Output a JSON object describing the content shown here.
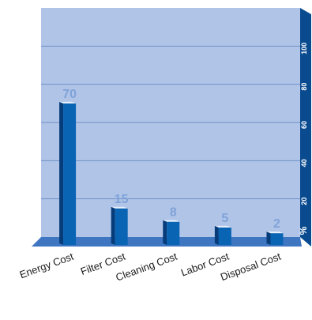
{
  "chart_data": {
    "type": "bar",
    "categories": [
      "Energy Cost",
      "Filter Cost",
      "Cleaning Cost",
      "Labor Cost",
      "Disposal Cost"
    ],
    "values": [
      70,
      15,
      8,
      5,
      2
    ],
    "ylim": [
      0,
      120
    ],
    "yticks": [
      20,
      40,
      60,
      80,
      100
    ],
    "unit": "%",
    "title": "",
    "xlabel": "",
    "ylabel": "",
    "grid": true,
    "colors": {
      "plot_background": "#b0c4e8",
      "floor": "#3f76c2",
      "right_wall": "#0a4a8f",
      "grid": "#6f8fc4",
      "bar_front": "#0a64b4",
      "bar_side": "#063c7a",
      "bar_top": "#e8f0fb",
      "value_label": "#7fa3d8"
    }
  }
}
